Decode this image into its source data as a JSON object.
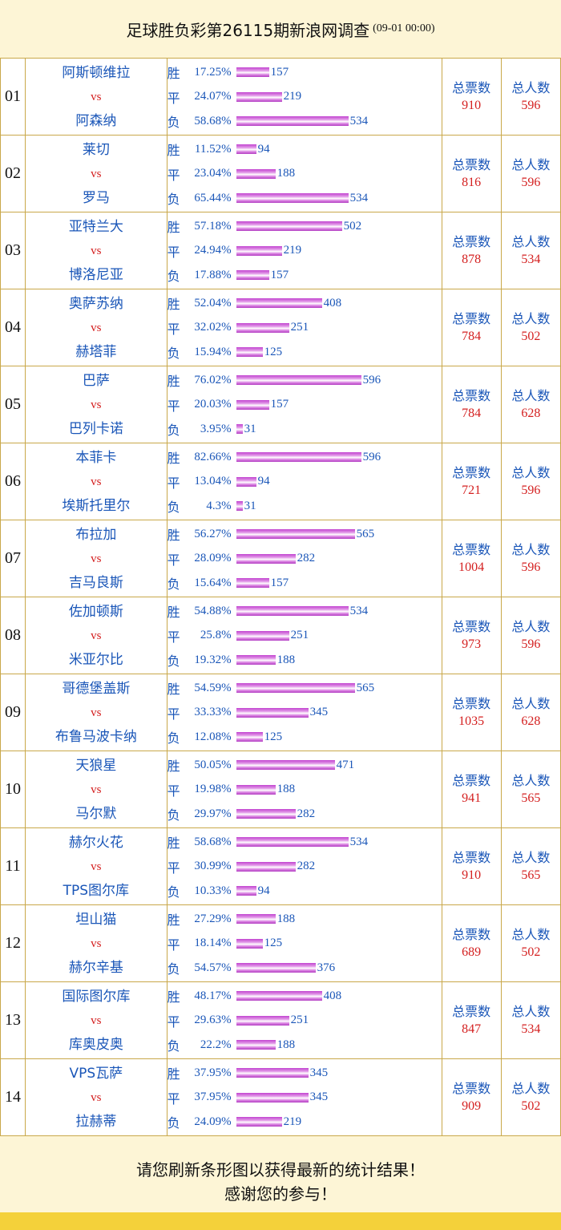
{
  "header": {
    "title": "足球胜负彩第26115期新浪网调查",
    "subtitle": "(09-01 00:00)"
  },
  "labels": {
    "vs": "vs",
    "win": "胜",
    "draw": "平",
    "loss": "负",
    "total_votes": "总票数",
    "total_people": "总人数"
  },
  "matches": [
    {
      "no": "01",
      "home": "阿斯顿维拉",
      "away": "阿森纳",
      "win_pct": "17.25%",
      "win": 157,
      "draw_pct": "24.07%",
      "draw": 219,
      "loss_pct": "58.68%",
      "loss": 534,
      "total_votes": "910",
      "total_people": "596"
    },
    {
      "no": "02",
      "home": "莱切",
      "away": "罗马",
      "win_pct": "11.52%",
      "win": 94,
      "draw_pct": "23.04%",
      "draw": 188,
      "loss_pct": "65.44%",
      "loss": 534,
      "total_votes": "816",
      "total_people": "596"
    },
    {
      "no": "03",
      "home": "亚特兰大",
      "away": "博洛尼亚",
      "win_pct": "57.18%",
      "win": 502,
      "draw_pct": "24.94%",
      "draw": 219,
      "loss_pct": "17.88%",
      "loss": 157,
      "total_votes": "878",
      "total_people": "534"
    },
    {
      "no": "04",
      "home": "奥萨苏纳",
      "away": "赫塔菲",
      "win_pct": "52.04%",
      "win": 408,
      "draw_pct": "32.02%",
      "draw": 251,
      "loss_pct": "15.94%",
      "loss": 125,
      "total_votes": "784",
      "total_people": "502"
    },
    {
      "no": "05",
      "home": "巴萨",
      "away": "巴列卡诺",
      "win_pct": "76.02%",
      "win": 596,
      "draw_pct": "20.03%",
      "draw": 157,
      "loss_pct": "3.95%",
      "loss": 31,
      "total_votes": "784",
      "total_people": "628"
    },
    {
      "no": "06",
      "home": "本菲卡",
      "away": "埃斯托里尔",
      "win_pct": "82.66%",
      "win": 596,
      "draw_pct": "13.04%",
      "draw": 94,
      "loss_pct": "4.3%",
      "loss": 31,
      "total_votes": "721",
      "total_people": "596"
    },
    {
      "no": "07",
      "home": "布拉加",
      "away": "吉马良斯",
      "win_pct": "56.27%",
      "win": 565,
      "draw_pct": "28.09%",
      "draw": 282,
      "loss_pct": "15.64%",
      "loss": 157,
      "total_votes": "1004",
      "total_people": "596"
    },
    {
      "no": "08",
      "home": "佐加顿斯",
      "away": "米亚尔比",
      "win_pct": "54.88%",
      "win": 534,
      "draw_pct": "25.8%",
      "draw": 251,
      "loss_pct": "19.32%",
      "loss": 188,
      "total_votes": "973",
      "total_people": "596"
    },
    {
      "no": "09",
      "home": "哥德堡盖斯",
      "away": "布鲁马波卡纳",
      "win_pct": "54.59%",
      "win": 565,
      "draw_pct": "33.33%",
      "draw": 345,
      "loss_pct": "12.08%",
      "loss": 125,
      "total_votes": "1035",
      "total_people": "628"
    },
    {
      "no": "10",
      "home": "天狼星",
      "away": "马尔默",
      "win_pct": "50.05%",
      "win": 471,
      "draw_pct": "19.98%",
      "draw": 188,
      "loss_pct": "29.97%",
      "loss": 282,
      "total_votes": "941",
      "total_people": "565"
    },
    {
      "no": "11",
      "home": "赫尔火花",
      "away": "TPS图尔库",
      "win_pct": "58.68%",
      "win": 534,
      "draw_pct": "30.99%",
      "draw": 282,
      "loss_pct": "10.33%",
      "loss": 94,
      "total_votes": "910",
      "total_people": "565"
    },
    {
      "no": "12",
      "home": "坦山猫",
      "away": "赫尔辛基",
      "win_pct": "27.29%",
      "win": 188,
      "draw_pct": "18.14%",
      "draw": 125,
      "loss_pct": "54.57%",
      "loss": 376,
      "total_votes": "689",
      "total_people": "502"
    },
    {
      "no": "13",
      "home": "国际图尔库",
      "away": "库奥皮奥",
      "win_pct": "48.17%",
      "win": 408,
      "draw_pct": "29.63%",
      "draw": 251,
      "loss_pct": "22.2%",
      "loss": 188,
      "total_votes": "847",
      "total_people": "534"
    },
    {
      "no": "14",
      "home": "VPS瓦萨",
      "away": "拉赫蒂",
      "win_pct": "37.95%",
      "win": 345,
      "draw_pct": "37.95%",
      "draw": 345,
      "loss_pct": "24.09%",
      "loss": 219,
      "total_votes": "909",
      "total_people": "502"
    }
  ],
  "footer": {
    "line1": "请您刷新条形图以获得最新的统计结果！",
    "line2": "感谢您的参与！"
  },
  "colors": {
    "team_text": "#1a56b8",
    "accent_red": "#d42020",
    "border": "#c9a84a",
    "bar": "#cc55d6",
    "background": "#fdf5d6",
    "bottom_strip": "#f4d13a"
  }
}
